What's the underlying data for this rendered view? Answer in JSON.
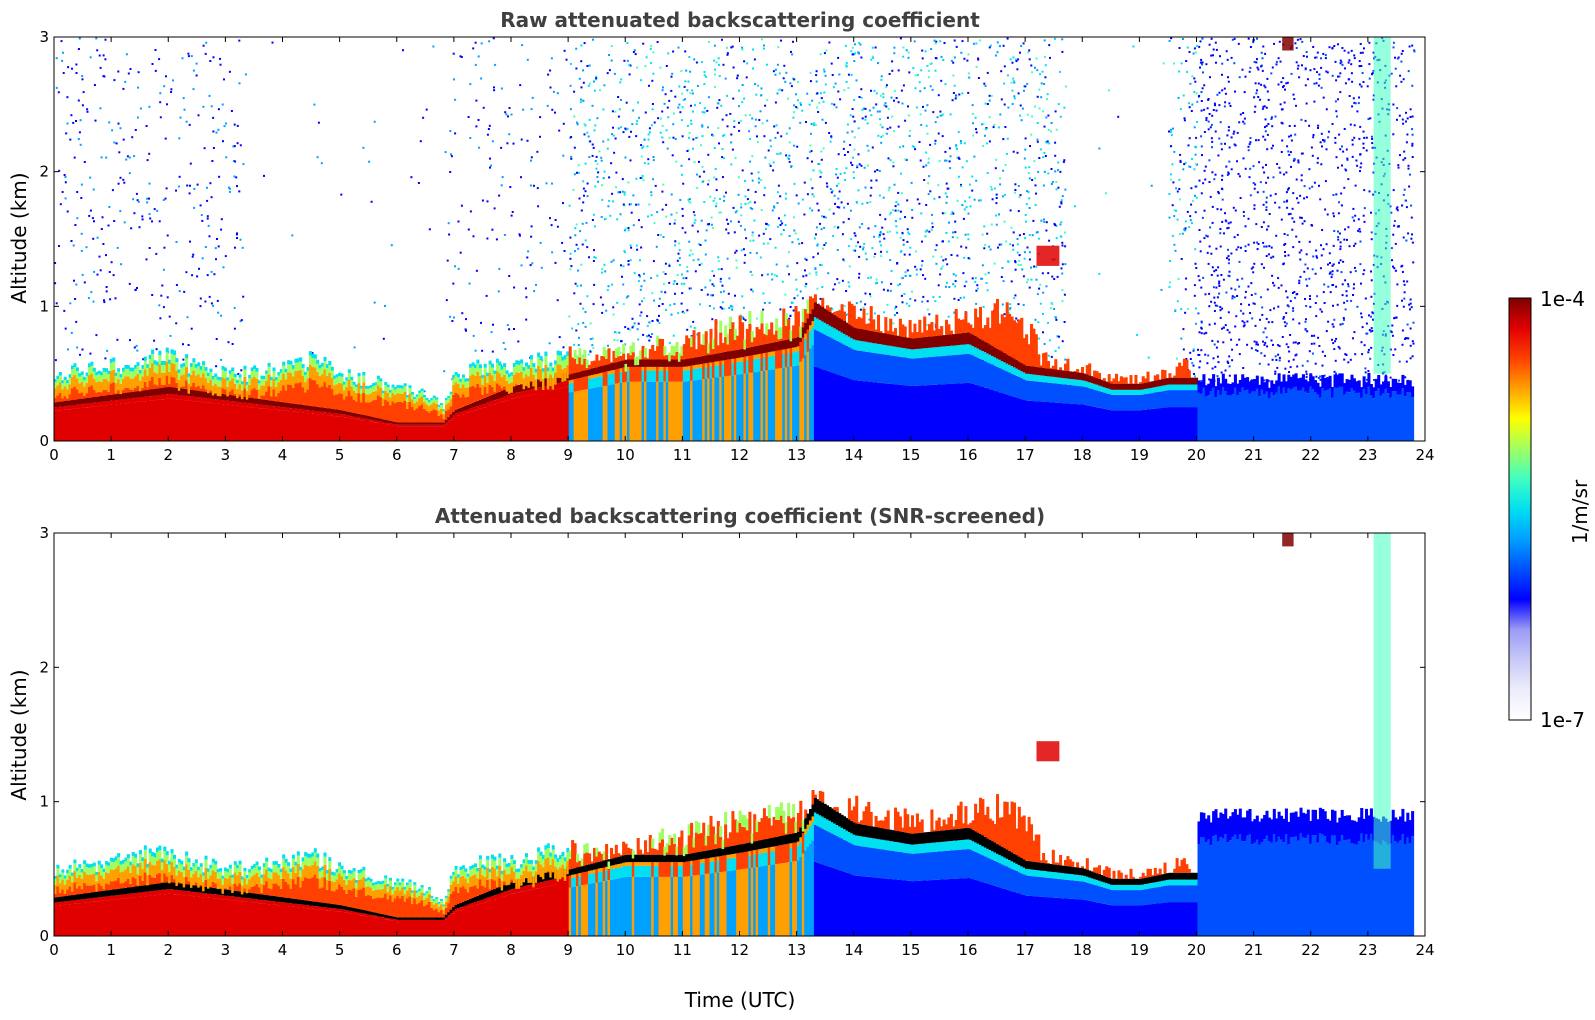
{
  "chart_data": [
    {
      "type": "heatmap",
      "title": "Raw attenuated backscattering coefficient",
      "xlabel": "",
      "ylabel": "Altitude (km)",
      "xlim": [
        0,
        24
      ],
      "ylim": [
        0,
        3
      ],
      "x_ticks": [
        "0",
        "1",
        "2",
        "3",
        "4",
        "5",
        "6",
        "7",
        "8",
        "9",
        "10",
        "11",
        "12",
        "13",
        "14",
        "15",
        "16",
        "17",
        "18",
        "19",
        "20",
        "21",
        "22",
        "23",
        "24"
      ],
      "y_ticks": [
        "0",
        "1",
        "2",
        "3"
      ],
      "data_end_hour": 23.8,
      "layer_top_km": [
        [
          0,
          0.5
        ],
        [
          0.5,
          0.52
        ],
        [
          1,
          0.55
        ],
        [
          1.5,
          0.6
        ],
        [
          2,
          0.62
        ],
        [
          2.5,
          0.55
        ],
        [
          3,
          0.5
        ],
        [
          3.5,
          0.5
        ],
        [
          4,
          0.55
        ],
        [
          4.5,
          0.6
        ],
        [
          5,
          0.5
        ],
        [
          5.5,
          0.45
        ],
        [
          6,
          0.4
        ],
        [
          6.5,
          0.35
        ],
        [
          6.8,
          0.25
        ],
        [
          7,
          0.5
        ],
        [
          7.5,
          0.55
        ],
        [
          8,
          0.55
        ],
        [
          8.5,
          0.6
        ],
        [
          9,
          0.65
        ],
        [
          9.5,
          0.62
        ],
        [
          10,
          0.65
        ],
        [
          10.5,
          0.7
        ],
        [
          11,
          0.75
        ],
        [
          11.5,
          0.8
        ],
        [
          12,
          0.85
        ],
        [
          12.5,
          0.9
        ],
        [
          13,
          0.9
        ],
        [
          13.3,
          1.0
        ],
        [
          13.7,
          0.9
        ],
        [
          14,
          0.95
        ],
        [
          14.5,
          0.85
        ],
        [
          15,
          0.85
        ],
        [
          15.5,
          0.85
        ],
        [
          16,
          0.95
        ],
        [
          16.5,
          0.95
        ],
        [
          17,
          0.85
        ],
        [
          17.3,
          0.6
        ],
        [
          17.7,
          0.55
        ],
        [
          18,
          0.55
        ],
        [
          18.5,
          0.45
        ],
        [
          19,
          0.45
        ],
        [
          19.5,
          0.5
        ],
        [
          19.8,
          0.55
        ],
        [
          20,
          0.45
        ],
        [
          21,
          0.45
        ],
        [
          22,
          0.45
        ],
        [
          23,
          0.45
        ],
        [
          23.8,
          0.45
        ]
      ],
      "peak_layer_km": [
        [
          0,
          0.25
        ],
        [
          1,
          0.3
        ],
        [
          2,
          0.35
        ],
        [
          3,
          0.3
        ],
        [
          4,
          0.25
        ],
        [
          5,
          0.2
        ],
        [
          6,
          0.12
        ],
        [
          6.8,
          0.12
        ],
        [
          7,
          0.2
        ],
        [
          8,
          0.35
        ],
        [
          9,
          0.45
        ],
        [
          10,
          0.55
        ],
        [
          11,
          0.55
        ],
        [
          12,
          0.62
        ],
        [
          13,
          0.7
        ],
        [
          13.3,
          0.92
        ],
        [
          14,
          0.75
        ],
        [
          15,
          0.68
        ],
        [
          16,
          0.72
        ],
        [
          17,
          0.5
        ],
        [
          18,
          0.45
        ],
        [
          18.5,
          0.38
        ],
        [
          19,
          0.38
        ],
        [
          19.5,
          0.42
        ]
      ],
      "features": [
        {
          "label": "elevated aerosol 17.2-17.6 UTC",
          "x": [
            17.2,
            17.6
          ],
          "y": [
            1.3,
            1.45
          ]
        },
        {
          "label": "cloud near 21.6 UTC",
          "x": [
            21.5,
            21.7
          ],
          "y": [
            2.9,
            3.0
          ]
        },
        {
          "label": "plume near 23.2 UTC",
          "x": [
            23.1,
            23.4
          ],
          "y": [
            0.5,
            3.0
          ]
        }
      ],
      "noise_clear_windows_hours": [
        [
          3.3,
          6.8
        ],
        [
          17.7,
          19.5
        ]
      ]
    },
    {
      "type": "heatmap",
      "title": "Attenuated backscattering coefficient (SNR-screened)",
      "xlabel": "Time (UTC)",
      "ylabel": "Altitude (km)",
      "xlim": [
        0,
        24
      ],
      "ylim": [
        0,
        3
      ],
      "x_ticks": [
        "0",
        "1",
        "2",
        "3",
        "4",
        "5",
        "6",
        "7",
        "8",
        "9",
        "10",
        "11",
        "12",
        "13",
        "14",
        "15",
        "16",
        "17",
        "18",
        "19",
        "20",
        "21",
        "22",
        "23",
        "24"
      ],
      "y_ticks": [
        "0",
        "1",
        "2",
        "3"
      ],
      "screened_top_after_20h_km": 1.0
    }
  ],
  "colorbar": {
    "min_label": "1e-7",
    "max_label": "1e-4",
    "label": "1/m/sr",
    "scale": "log",
    "colormap": "jet",
    "colors": [
      "#ffffff",
      "#ededfb",
      "#c8c8f7",
      "#9b9bf5",
      "#0000ff",
      "#0050ff",
      "#00a0ff",
      "#00e0f0",
      "#40ffc0",
      "#a0ff60",
      "#ffff00",
      "#ffa000",
      "#ff4000",
      "#e00000",
      "#800000"
    ]
  }
}
